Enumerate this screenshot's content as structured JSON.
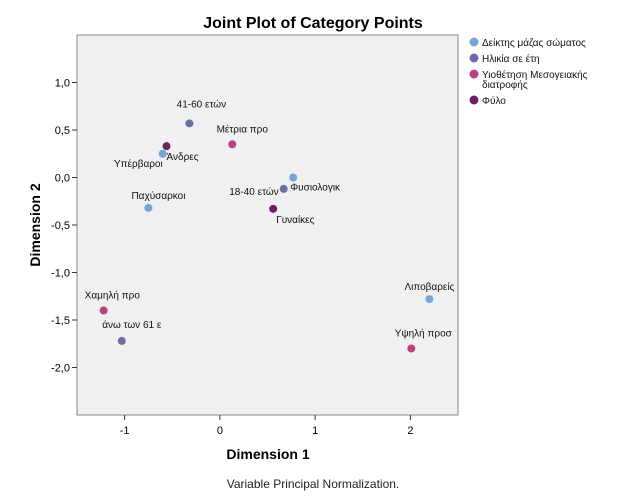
{
  "chart_data": {
    "type": "scatter",
    "title": "Joint Plot of Category Points",
    "xlabel": "Dimension 1",
    "ylabel": "Dimension 2",
    "footnote": "Variable Principal Normalization.",
    "xlim": [
      -1.5,
      2.5
    ],
    "ylim": [
      -2.5,
      1.5
    ],
    "xticks": [
      {
        "value": -1,
        "label": "-1"
      },
      {
        "value": 0,
        "label": "0"
      },
      {
        "value": 1,
        "label": "1"
      },
      {
        "value": 2,
        "label": "2"
      }
    ],
    "yticks": [
      {
        "value": 1.0,
        "label": "1,0"
      },
      {
        "value": 0.5,
        "label": "0,5"
      },
      {
        "value": 0.0,
        "label": "0,0"
      },
      {
        "value": -0.5,
        "label": "-0,5"
      },
      {
        "value": -1.0,
        "label": "-1,0"
      },
      {
        "value": -1.5,
        "label": "-1,5"
      },
      {
        "value": -2.0,
        "label": "-2,0"
      }
    ],
    "legend_position": "right",
    "series": [
      {
        "name": "Δείκτης μάζας σώματος",
        "color": "#74a6d6",
        "points": [
          {
            "label": "Υπέρβαροι",
            "x": -0.6,
            "y": 0.25,
            "anchor": "end",
            "dy": 13
          },
          {
            "label": "Παχύσαρκοι",
            "x": -0.75,
            "y": -0.32,
            "anchor": "start",
            "dx": -17,
            "dy": -9
          },
          {
            "label": "Φυσιολογικ",
            "x": 0.77,
            "y": 0.0,
            "anchor": "start",
            "dx": -3,
            "dy": 13
          },
          {
            "label": "Λιποβαρείς",
            "x": 2.2,
            "y": -1.28,
            "anchor": "middle",
            "dy": -9
          }
        ]
      },
      {
        "name": "Ηλικία σε έτη",
        "color": "#6e6ea5",
        "points": [
          {
            "label": "41-60 ετών",
            "x": -0.32,
            "y": 0.57,
            "anchor": "middle",
            "dx": 12,
            "dy": -16
          },
          {
            "label": "18-40 ετών",
            "x": 0.67,
            "y": -0.12,
            "anchor": "end",
            "dx": -5,
            "dy": 6
          },
          {
            "label": "άνω των 61 ε",
            "x": -1.03,
            "y": -1.72,
            "anchor": "middle",
            "dx": 10,
            "dy": -13
          }
        ]
      },
      {
        "name": "Υιοθέτηση Μεσογειακής διατροφής",
        "color": "#b84380",
        "points": [
          {
            "label": "Μέτρια προ",
            "x": 0.13,
            "y": 0.35,
            "anchor": "middle",
            "dx": 10,
            "dy": -12
          },
          {
            "label": "Χαμηλή προ",
            "x": -1.22,
            "y": -1.4,
            "anchor": "start",
            "dx": -19,
            "dy": -12
          },
          {
            "label": "Υψηλή προσ",
            "x": 2.01,
            "y": -1.8,
            "anchor": "middle",
            "dx": 12,
            "dy": -12
          }
        ]
      },
      {
        "name": "Φύλο",
        "color": "#6c2167",
        "points": [
          {
            "label": "Άνδρες",
            "x": -0.56,
            "y": 0.33,
            "anchor": "start",
            "dx": 0,
            "dy": 14
          },
          {
            "label": "Γυναίκες",
            "x": 0.56,
            "y": -0.33,
            "anchor": "start",
            "dx": 3,
            "dy": 14
          }
        ]
      }
    ],
    "legend": [
      {
        "label_lines": [
          "Δείκτης μάζας σώματος"
        ],
        "color": "#74a6d6"
      },
      {
        "label_lines": [
          "Ηλικία σε έτη"
        ],
        "color": "#6e6ea5"
      },
      {
        "label_lines": [
          "Υιοθέτηση Μεσογειακής",
          "διατροφής"
        ],
        "color": "#b84380"
      },
      {
        "label_lines": [
          "Φύλο"
        ],
        "color": "#6c2167"
      }
    ]
  }
}
